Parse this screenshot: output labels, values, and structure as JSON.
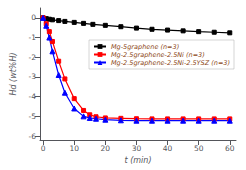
{
  "chart_data": {
    "type": "line",
    "xlabel": "t (min)",
    "ylabel": "Hd (wt%H)",
    "xlim": [
      -1,
      62
    ],
    "ylim": [
      -6.2,
      0.5
    ],
    "xticks": [
      0,
      10,
      20,
      30,
      40,
      50,
      60
    ],
    "yticks": [
      0,
      -1,
      -2,
      -3,
      -4,
      -5,
      -6
    ],
    "grid": false,
    "legend": "upper right",
    "series": [
      {
        "name": "Mg-5graphene (n=3)",
        "color": "#000000",
        "marker": "square",
        "x": [
          0,
          1,
          2,
          3,
          5,
          7,
          10,
          13,
          16,
          20,
          25,
          30,
          35,
          40,
          45,
          50,
          55,
          60
        ],
        "values": [
          0,
          -0.04,
          -0.07,
          -0.1,
          -0.14,
          -0.18,
          -0.23,
          -0.28,
          -0.33,
          -0.38,
          -0.45,
          -0.52,
          -0.58,
          -0.62,
          -0.66,
          -0.7,
          -0.73,
          -0.76
        ]
      },
      {
        "name": "Mg-2.5graphene-2.5Ni (n=3)",
        "color": "#ff0000",
        "marker": "square",
        "x": [
          0,
          1,
          2,
          3,
          5,
          7,
          10,
          13,
          15,
          17,
          20,
          25,
          30,
          35,
          40,
          45,
          50,
          55,
          60
        ],
        "values": [
          0,
          -0.3,
          -0.7,
          -1.2,
          -2.2,
          -3.1,
          -4.1,
          -4.7,
          -4.92,
          -5.02,
          -5.08,
          -5.1,
          -5.12,
          -5.13,
          -5.13,
          -5.13,
          -5.13,
          -5.13,
          -5.13
        ]
      },
      {
        "name": "Mg-2.5graphene-2.5Ni-2.5YSZ (n=3)",
        "color": "#0000ff",
        "marker": "triangle",
        "x": [
          0,
          1,
          2,
          3,
          5,
          7,
          10,
          13,
          15,
          17,
          20,
          25,
          30,
          35,
          40,
          45,
          50,
          55,
          60
        ],
        "values": [
          0,
          -0.4,
          -1.0,
          -1.7,
          -2.9,
          -3.8,
          -4.6,
          -5.0,
          -5.08,
          -5.12,
          -5.17,
          -5.2,
          -5.22,
          -5.22,
          -5.22,
          -5.22,
          -5.22,
          -5.22,
          -5.22
        ]
      }
    ]
  }
}
